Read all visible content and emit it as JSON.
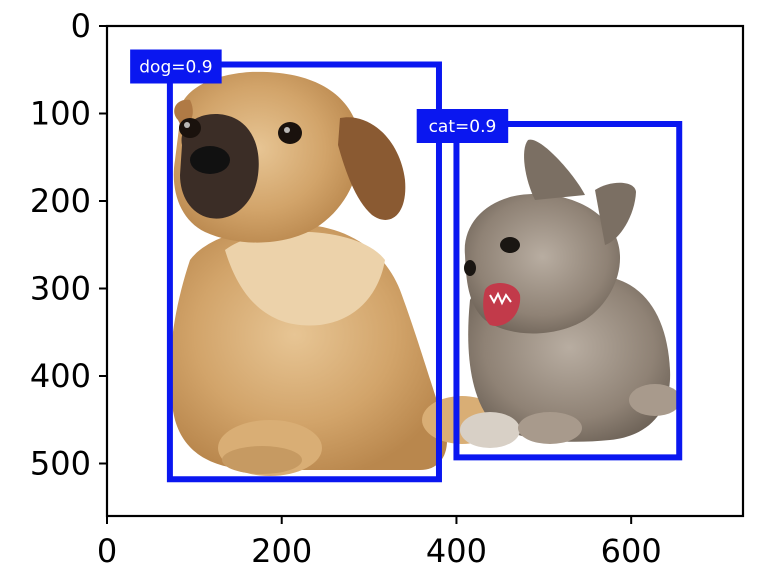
{
  "image": {
    "description_width": 728,
    "description_height": 560
  },
  "axes": {
    "xlim": [
      0,
      728
    ],
    "ylim": [
      560,
      0
    ],
    "x_ticks": [
      {
        "value": 0,
        "label": "0"
      },
      {
        "value": 200,
        "label": "200"
      },
      {
        "value": 400,
        "label": "400"
      },
      {
        "value": 600,
        "label": "600"
      }
    ],
    "y_ticks": [
      {
        "value": 0,
        "label": "0"
      },
      {
        "value": 100,
        "label": "100"
      },
      {
        "value": 200,
        "label": "200"
      },
      {
        "value": 300,
        "label": "300"
      },
      {
        "value": 400,
        "label": "400"
      },
      {
        "value": 500,
        "label": "500"
      }
    ]
  },
  "boxes": [
    {
      "name": "dog-box",
      "label": "dog=0.9",
      "x1": 72,
      "y1": 44,
      "x2": 380,
      "y2": 518,
      "color": "#0a17f0"
    },
    {
      "name": "cat-box",
      "label": "cat=0.9",
      "x1": 400,
      "y1": 112,
      "x2": 655,
      "y2": 493,
      "color": "#0a17f0"
    }
  ]
}
